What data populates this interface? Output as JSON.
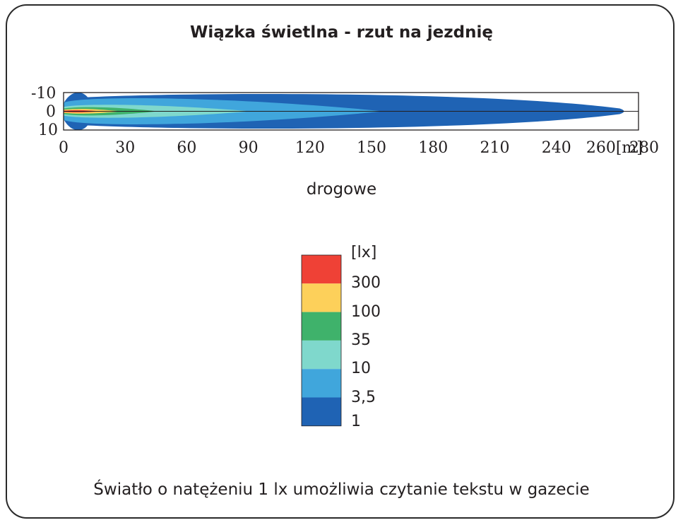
{
  "title": "Wiązka świetlna - rzut na jezdnię",
  "subtitle": "drogowe",
  "footer": "Światło o natężeniu 1 lx umożliwia czytanie tekstu w gazecie",
  "chart_data": {
    "type": "heatmap",
    "title": "Wiązka świetlna - rzut na jezdnię",
    "xlabel": "[m]",
    "x_ticks": [
      "0",
      "30",
      "60",
      "90",
      "120",
      "150",
      "180",
      "210",
      "240",
      "260[m]",
      "280"
    ],
    "y_ticks": [
      "-10",
      "0",
      "10"
    ],
    "xlim": [
      0,
      280
    ],
    "ylim": [
      -10,
      10
    ],
    "legend_unit": "[lx]",
    "levels": [
      {
        "value": "300",
        "color": "#ef4136",
        "reach_m": 18
      },
      {
        "value": "100",
        "color": "#fdd05a",
        "reach_m": 28
      },
      {
        "value": "35",
        "color": "#3fb26b",
        "reach_m": 46
      },
      {
        "value": "10",
        "color": "#7fd8cc",
        "reach_m": 91
      },
      {
        "value": "3,5",
        "color": "#40a6dc",
        "reach_m": 156
      },
      {
        "value": "1",
        "color": "#1f63b4",
        "reach_m": 275
      }
    ],
    "legend_bottom_label": "1",
    "caption": "drogowe"
  }
}
